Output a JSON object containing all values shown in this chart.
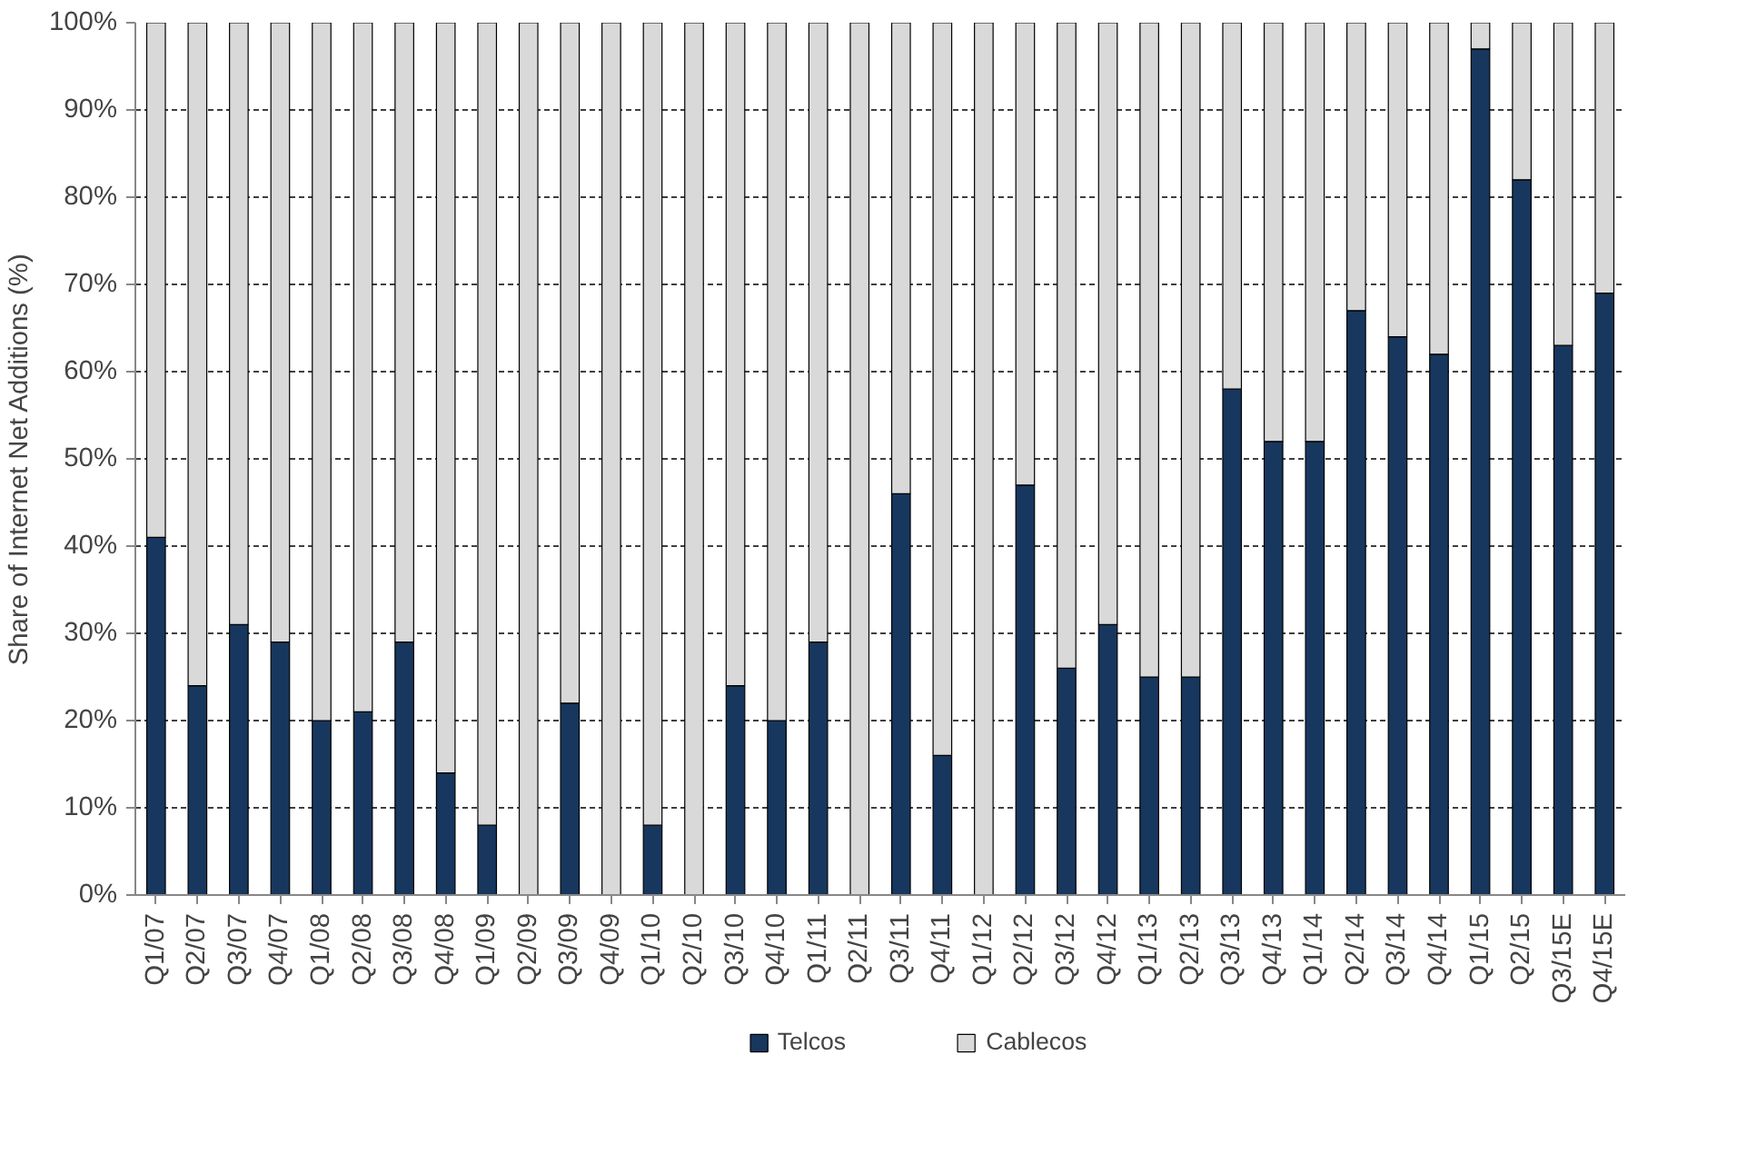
{
  "chart_data": {
    "type": "bar",
    "stacked": true,
    "ylabel": "Share of Internet Net Additions (%)",
    "categories": [
      "Q1/07",
      "Q2/07",
      "Q3/07",
      "Q4/07",
      "Q1/08",
      "Q2/08",
      "Q3/08",
      "Q4/08",
      "Q1/09",
      "Q2/09",
      "Q3/09",
      "Q4/09",
      "Q1/10",
      "Q2/10",
      "Q3/10",
      "Q4/10",
      "Q1/11",
      "Q2/11",
      "Q3/11",
      "Q4/11",
      "Q1/12",
      "Q2/12",
      "Q3/12",
      "Q4/12",
      "Q1/13",
      "Q2/13",
      "Q3/13",
      "Q4/13",
      "Q1/14",
      "Q2/14",
      "Q3/14",
      "Q4/14",
      "Q1/15",
      "Q2/15",
      "Q3/15E",
      "Q4/15E"
    ],
    "series": [
      {
        "name": "Telcos",
        "color": "#17375e",
        "values": [
          41,
          24,
          31,
          29,
          20,
          21,
          29,
          14,
          8,
          0,
          22,
          0,
          8,
          0,
          24,
          20,
          29,
          0,
          46,
          16,
          0,
          47,
          26,
          31,
          25,
          25,
          58,
          52,
          52,
          67,
          64,
          62,
          97,
          82,
          63,
          69
        ]
      },
      {
        "name": "Cablecos",
        "color": "#d9d9d9",
        "values": [
          59,
          76,
          69,
          71,
          80,
          79,
          71,
          86,
          92,
          100,
          78,
          100,
          92,
          100,
          76,
          80,
          71,
          100,
          54,
          84,
          100,
          53,
          74,
          69,
          75,
          75,
          42,
          48,
          48,
          33,
          36,
          38,
          3,
          18,
          37,
          31
        ]
      }
    ],
    "ylim": [
      0,
      100
    ],
    "yticks": [
      {
        "value": 0,
        "label": "0%"
      },
      {
        "value": 10,
        "label": "10%"
      },
      {
        "value": 20,
        "label": "20%"
      },
      {
        "value": 30,
        "label": "30%"
      },
      {
        "value": 40,
        "label": "40%"
      },
      {
        "value": 50,
        "label": "50%"
      },
      {
        "value": 60,
        "label": "60%"
      },
      {
        "value": 70,
        "label": "70%"
      },
      {
        "value": 80,
        "label": "80%"
      },
      {
        "value": 90,
        "label": "90%"
      },
      {
        "value": 100,
        "label": "100%"
      }
    ],
    "grid": "y",
    "legend": "bottom"
  }
}
